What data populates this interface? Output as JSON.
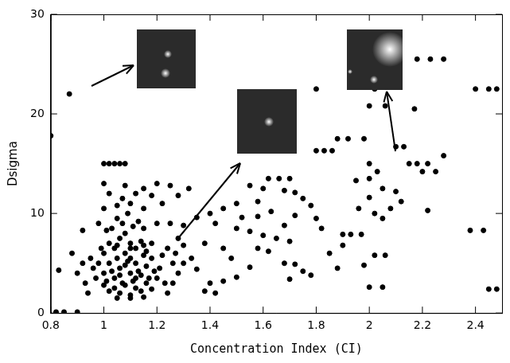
{
  "chart_data": {
    "type": "scatter",
    "x_label": "Concentration Index (CI)",
    "y_label": "Dsigma",
    "color": "#000000",
    "marker": "circle",
    "grid": false,
    "xlim": [
      0.8,
      2.5
    ],
    "ylim": [
      0,
      30
    ],
    "xticks": [
      0.8,
      1,
      1.2,
      1.4,
      1.6,
      1.8,
      2,
      2.2,
      2.4
    ],
    "yticks": [
      0,
      10,
      20,
      30
    ],
    "x": [
      0.87,
      0.8,
      0.82,
      0.85,
      0.9,
      0.83,
      0.88,
      0.92,
      2.18,
      2.23,
      2.28,
      2.4,
      2.45,
      2.48,
      1.8,
      2.0,
      2.06,
      2.17,
      2.02,
      1.0,
      1.02,
      1.04,
      1.06,
      1.08,
      1.88,
      1.92,
      1.98,
      1.8,
      1.83,
      1.86,
      2.1,
      2.13,
      2.15,
      2.2,
      2.25,
      2.18,
      2.22,
      2.0,
      2.03,
      2.0,
      1.95,
      2.05,
      2.1,
      2.12,
      2.08,
      2.22,
      2.0,
      1.96,
      2.02,
      2.05,
      2.38,
      2.43,
      2.45,
      2.48,
      2.02,
      2.06,
      1.98,
      2.0,
      2.05,
      1.9,
      1.93,
      1.97,
      2.28,
      1.62,
      1.66,
      1.7,
      1.55,
      1.6,
      1.68,
      1.72,
      1.75,
      1.58,
      1.5,
      1.45,
      1.4,
      1.35,
      1.32,
      1.28,
      1.25,
      1.2,
      1.15,
      1.22,
      1.3,
      1.42,
      1.5,
      1.55,
      1.6,
      1.65,
      1.7,
      1.58,
      1.62,
      1.68,
      1.72,
      1.75,
      1.78,
      1.7,
      1.55,
      1.5,
      1.45,
      1.4,
      1.38,
      1.42,
      1.35,
      1.33,
      1.3,
      1.28,
      1.25,
      1.38,
      1.45,
      1.48,
      1.52,
      1.58,
      1.63,
      1.68,
      1.72,
      1.78,
      1.8,
      1.82,
      1.85,
      1.88,
      1.9,
      1.0,
      1.02,
      1.04,
      1.06,
      1.08,
      1.1,
      1.12,
      1.14,
      1.16,
      1.18,
      1.0,
      1.02,
      1.04,
      1.06,
      1.08,
      1.1,
      1.12,
      1.14,
      1.16,
      1.18,
      1.0,
      1.02,
      1.04,
      1.06,
      1.08,
      1.1,
      1.12,
      1.14,
      1.16,
      1.18,
      0.97,
      0.98,
      0.96,
      0.99,
      0.95,
      1.2,
      1.21,
      1.22,
      1.23,
      1.24,
      1.01,
      1.03,
      1.05,
      1.07,
      1.09,
      1.11,
      1.13,
      1.15,
      1.17,
      1.19,
      1.03,
      1.07,
      1.11,
      1.05,
      1.13,
      1.09,
      1.15,
      1.01,
      0.98,
      1.2,
      1.26,
      1.27,
      1.28,
      1.3,
      1.26,
      0.93,
      0.94,
      0.92,
      0.9,
      1.24,
      1.05,
      1.1,
      1.0,
      1.15,
      1.07,
      1.12,
      1.02,
      1.18,
      1.08,
      1.0,
      1.05,
      1.1,
      1.15,
      1.1,
      1.1,
      1.05,
      1.15,
      1.08,
      1.12,
      1.06
    ],
    "values": [
      22,
      17.8,
      0.1,
      0.1,
      0.1,
      4.3,
      6,
      8.3,
      25.5,
      25.5,
      25.5,
      22.5,
      22.5,
      22.5,
      22.5,
      20.8,
      20.8,
      20.5,
      22.5,
      15,
      15,
      15,
      15,
      15,
      17.5,
      17.5,
      17.5,
      16.3,
      16.3,
      16.3,
      16.7,
      16.7,
      15,
      14.2,
      14.2,
      15,
      15,
      15,
      14.2,
      13.5,
      13.3,
      12.5,
      12.2,
      11.2,
      10.5,
      10.3,
      11.6,
      10.5,
      10,
      9.5,
      8.3,
      8.3,
      2.4,
      2.4,
      5.8,
      5.8,
      4.8,
      2.6,
      2.6,
      7.9,
      7.9,
      7.9,
      15.8,
      13.5,
      13.5,
      13.5,
      12.8,
      12.5,
      12.3,
      12.1,
      11.5,
      11.2,
      11,
      10.5,
      10,
      9.6,
      12.5,
      11.8,
      12.8,
      13,
      12.5,
      11,
      8.8,
      9,
      8.5,
      8.2,
      7.8,
      7.5,
      7.2,
      6.5,
      6.2,
      5,
      4.9,
      4.2,
      3.8,
      3.4,
      4.6,
      3.6,
      3.2,
      3,
      2.2,
      2,
      4.4,
      5.5,
      6.8,
      7.5,
      9,
      7,
      6.5,
      5.5,
      9.6,
      9.7,
      10.2,
      8.8,
      9.8,
      10.8,
      9.5,
      8.5,
      6,
      4.5,
      6.8,
      4,
      5,
      3.5,
      4.5,
      6,
      4,
      5,
      3.8,
      4.7,
      5.5,
      6,
      7,
      6.5,
      7.5,
      8,
      7,
      6.5,
      7.2,
      6.2,
      7,
      2.8,
      2.2,
      2.5,
      2,
      2.8,
      1.8,
      2.5,
      2.2,
      3,
      2.4,
      3.5,
      5,
      4.5,
      6.5,
      5.5,
      3.5,
      4.5,
      5.8,
      3,
      6.5,
      3.2,
      4.2,
      5.5,
      3,
      5.2,
      3.2,
      4.2,
      5.8,
      3.5,
      4.2,
      8.5,
      9,
      8.7,
      9.5,
      9.2,
      10,
      8.5,
      8.3,
      9,
      9,
      5,
      6,
      4,
      5,
      3,
      3,
      2,
      5,
      4,
      2,
      10.8,
      11,
      10.5,
      10.5,
      11.5,
      12,
      12,
      11.8,
      12.8,
      13,
      1.5,
      1.5,
      1.6,
      5.5,
      6.5,
      6.8,
      6.8,
      4.8,
      3.5,
      3.8
    ]
  }
}
